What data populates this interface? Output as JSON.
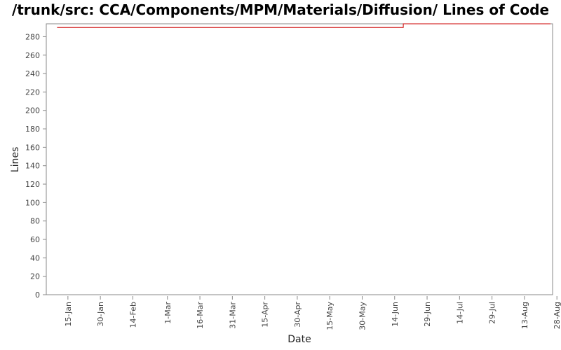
{
  "chart_data": {
    "type": "line",
    "title": "/trunk/src: CCA/Components/MPM/Materials/Diffusion/ Lines of Code",
    "xlabel": "Date",
    "ylabel": "Lines",
    "ylim": [
      0,
      294
    ],
    "y_ticks": [
      0,
      20,
      40,
      60,
      80,
      100,
      120,
      140,
      160,
      180,
      200,
      220,
      240,
      260,
      280
    ],
    "x_range": [
      "2008-01-05",
      "2008-08-26"
    ],
    "x_ticks": [
      {
        "date": "2008-01-15",
        "label": "15-Jan"
      },
      {
        "date": "2008-01-30",
        "label": "30-Jan"
      },
      {
        "date": "2008-02-14",
        "label": "14-Feb"
      },
      {
        "date": "2008-03-01",
        "label": "1-Mar"
      },
      {
        "date": "2008-03-16",
        "label": "16-Mar"
      },
      {
        "date": "2008-03-31",
        "label": "31-Mar"
      },
      {
        "date": "2008-04-15",
        "label": "15-Apr"
      },
      {
        "date": "2008-04-30",
        "label": "30-Apr"
      },
      {
        "date": "2008-05-15",
        "label": "15-May"
      },
      {
        "date": "2008-05-30",
        "label": "30-May"
      },
      {
        "date": "2008-06-14",
        "label": "14-Jun"
      },
      {
        "date": "2008-06-29",
        "label": "29-Jun"
      },
      {
        "date": "2008-07-14",
        "label": "14-Jul"
      },
      {
        "date": "2008-07-29",
        "label": "29-Jul"
      },
      {
        "date": "2008-08-13",
        "label": "13-Aug"
      },
      {
        "date": "2008-08-28",
        "label": "28-Aug"
      }
    ],
    "series": [
      {
        "color": "#cc0000",
        "points": [
          {
            "x": "2008-01-10",
            "y": 290
          },
          {
            "x": "2008-06-18",
            "y": 290
          },
          {
            "x": "2008-06-18",
            "y": 294
          },
          {
            "x": "2008-08-25",
            "y": 294
          }
        ]
      }
    ],
    "grid": false,
    "legend": "none"
  }
}
